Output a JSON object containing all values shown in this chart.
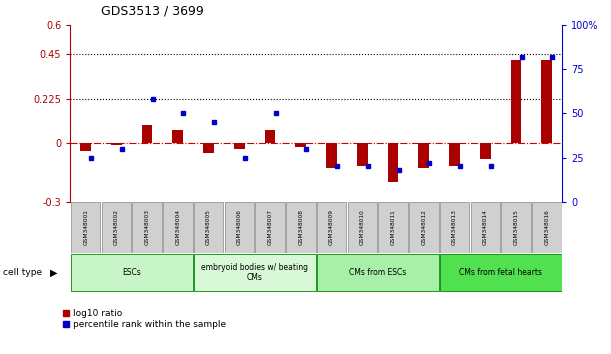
{
  "title": "GDS3513 / 3699",
  "samples": [
    "GSM348001",
    "GSM348002",
    "GSM348003",
    "GSM348004",
    "GSM348005",
    "GSM348006",
    "GSM348007",
    "GSM348008",
    "GSM348009",
    "GSM348010",
    "GSM348011",
    "GSM348012",
    "GSM348013",
    "GSM348014",
    "GSM348015",
    "GSM348016"
  ],
  "log10_ratio": [
    -0.04,
    -0.01,
    0.09,
    0.065,
    -0.05,
    -0.03,
    0.065,
    -0.02,
    -0.13,
    -0.12,
    -0.2,
    -0.13,
    -0.12,
    -0.085,
    0.42,
    0.42
  ],
  "percentile_rank": [
    25,
    30,
    58,
    50,
    45,
    25,
    50,
    30,
    20,
    20,
    18,
    22,
    20,
    20,
    82,
    82
  ],
  "cell_type_groups": [
    {
      "label": "ESCs",
      "start": 0,
      "end": 3,
      "color": "#c8f5c8"
    },
    {
      "label": "embryoid bodies w/ beating\nCMs",
      "start": 4,
      "end": 7,
      "color": "#d8f8d8"
    },
    {
      "label": "CMs from ESCs",
      "start": 8,
      "end": 11,
      "color": "#a8f0a8"
    },
    {
      "label": "CMs from fetal hearts",
      "start": 12,
      "end": 15,
      "color": "#50e050"
    }
  ],
  "ylim_left": [
    -0.3,
    0.6
  ],
  "ylim_right": [
    0,
    100
  ],
  "yticks_left": [
    -0.3,
    0.0,
    0.225,
    0.45,
    0.6
  ],
  "yticks_right": [
    0,
    25,
    50,
    75,
    100
  ],
  "hlines": [
    0.225,
    0.45
  ],
  "bar_color_red": "#aa0000",
  "bar_color_blue": "#0000cc",
  "zero_line_color": "#cc0000",
  "sample_box_color": "#d0d0d0",
  "legend_labels": [
    "log10 ratio",
    "percentile rank within the sample"
  ]
}
